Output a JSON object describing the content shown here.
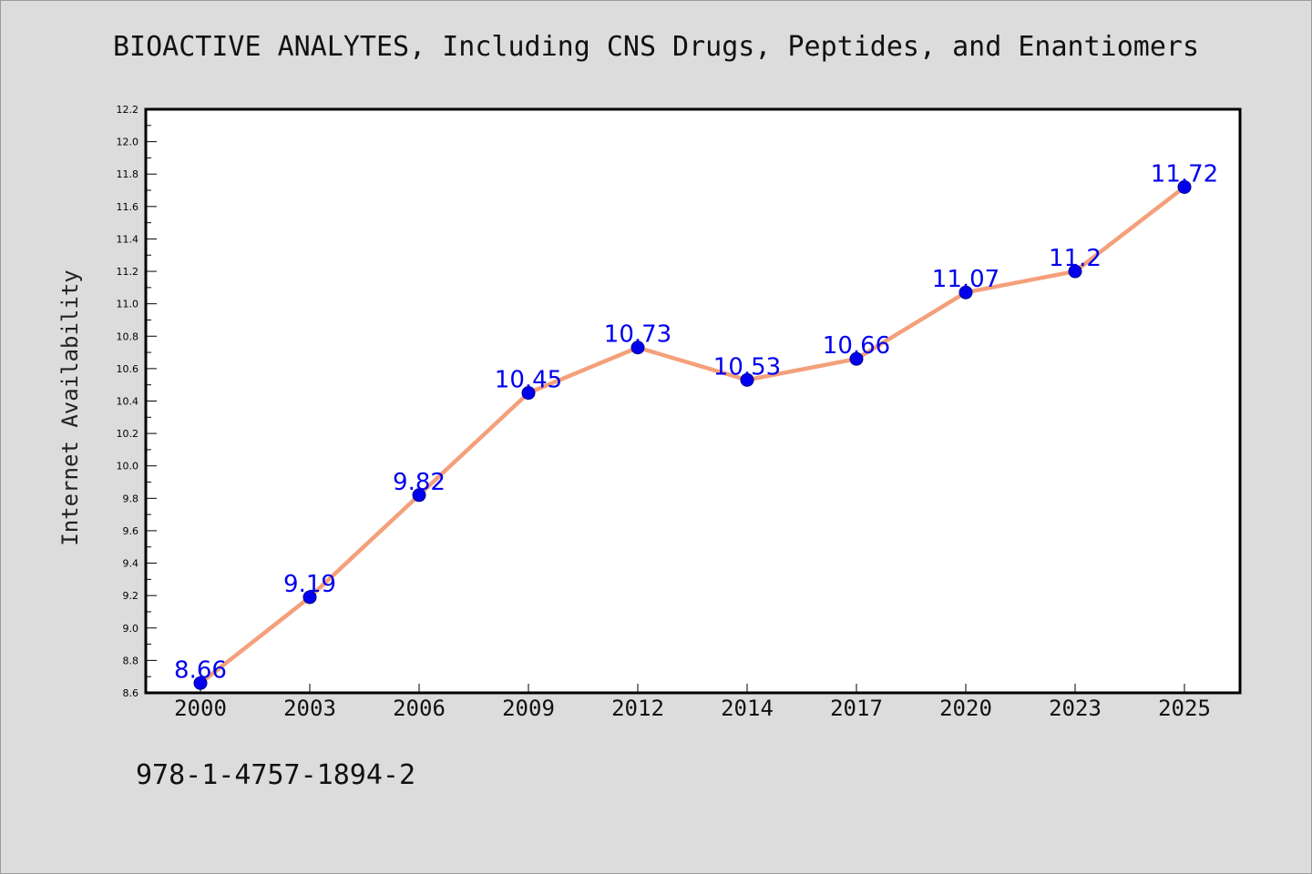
{
  "chart_data": {
    "type": "line",
    "title": "BIOACTIVE ANALYTES, Including CNS Drugs, Peptides, and Enantiomers",
    "xlabel": "",
    "ylabel": "Internet Availability",
    "categories": [
      "2000",
      "2003",
      "2006",
      "2009",
      "2012",
      "2014",
      "2017",
      "2020",
      "2023",
      "2025"
    ],
    "series": [
      {
        "values": [
          8.66,
          9.19,
          9.82,
          10.45,
          10.73,
          10.53,
          10.66,
          11.07,
          11.2,
          11.72
        ],
        "data_labels": [
          "8.66",
          "9.19",
          "9.82",
          "10.45",
          "10.73",
          "10.53",
          "10.66",
          "11.07",
          "11.2",
          "11.72"
        ],
        "line_color": "#f4a07a",
        "marker_color": "#0000ee"
      }
    ],
    "ylim": [
      8.6,
      12.2
    ],
    "yticks": [
      "8.6",
      "8.8",
      "9.0",
      "9.2",
      "9.4",
      "9.6",
      "9.8",
      "10.0",
      "10.2",
      "10.4",
      "10.6",
      "10.8",
      "11.0",
      "11.2",
      "11.4",
      "11.6",
      "11.8",
      "12.0",
      "12.2"
    ],
    "grid": false,
    "label_color": "#0000ee"
  },
  "footnote": "978-1-4757-1894-2",
  "colors": {
    "background": "#dcdcdc",
    "plot_area": "#ffffff"
  }
}
